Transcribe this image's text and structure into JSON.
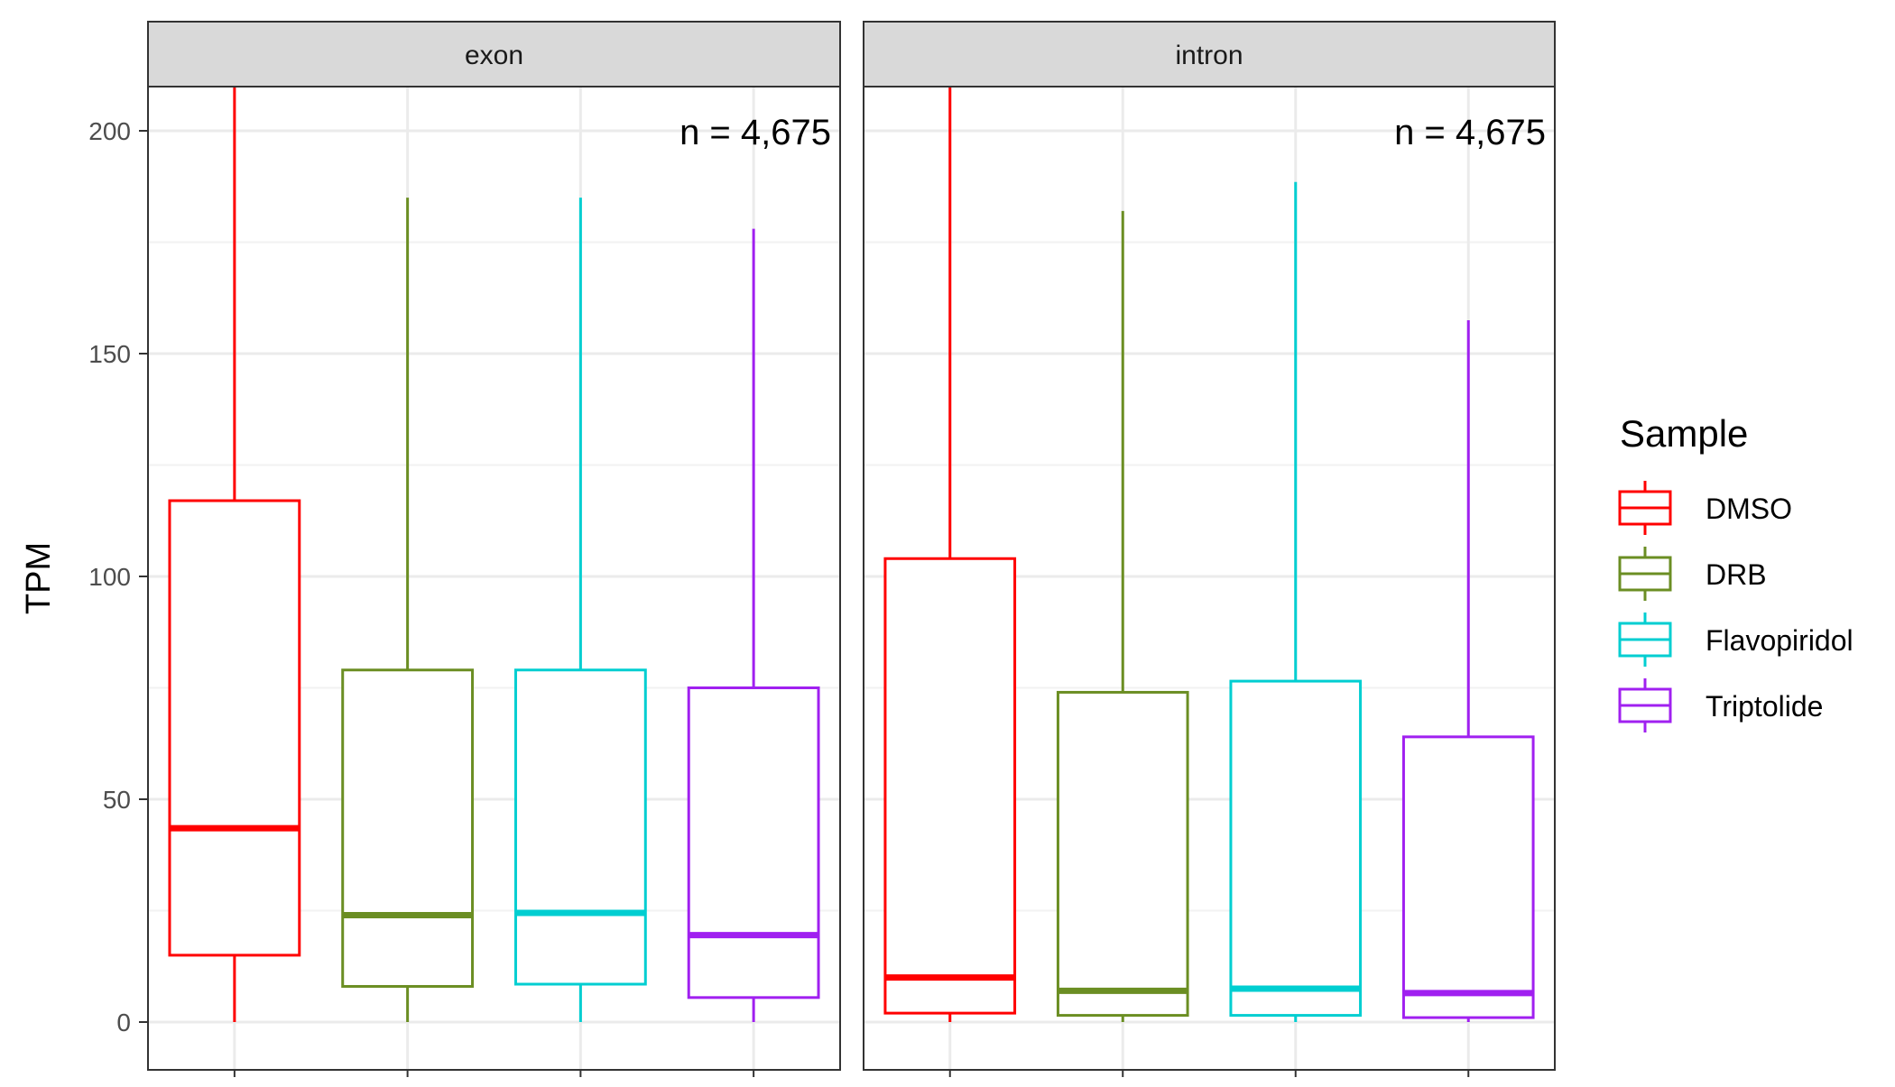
{
  "chart_data": {
    "type": "boxplot",
    "ylabel": "TPM",
    "ylim": [
      0,
      210
    ],
    "yticks": [
      0,
      50,
      100,
      150,
      200
    ],
    "legend": {
      "title": "Sample",
      "placement": "right",
      "items": [
        {
          "label": "DMSO",
          "color": "#ff0000"
        },
        {
          "label": "DRB",
          "color": "#6b8e23"
        },
        {
          "label": "Flavopiridol",
          "color": "#00ced1"
        },
        {
          "label": "Triptolide",
          "color": "#a020f0"
        }
      ]
    },
    "panels": [
      {
        "title": "exon",
        "annotation": "n = 4,675",
        "boxes": [
          {
            "sample": "DMSO",
            "low": 0,
            "q1": 15,
            "median": 43.5,
            "q3": 117,
            "high": 210
          },
          {
            "sample": "DRB",
            "low": 0,
            "q1": 8,
            "median": 24,
            "q3": 79,
            "high": 185
          },
          {
            "sample": "Flavopiridol",
            "low": 0,
            "q1": 8.5,
            "median": 24.5,
            "q3": 79,
            "high": 185
          },
          {
            "sample": "Triptolide",
            "low": 0,
            "q1": 5.5,
            "median": 19.5,
            "q3": 75,
            "high": 178
          }
        ]
      },
      {
        "title": "intron",
        "annotation": "n = 4,675",
        "boxes": [
          {
            "sample": "DMSO",
            "low": 0,
            "q1": 2,
            "median": 10,
            "q3": 104,
            "high": 210
          },
          {
            "sample": "DRB",
            "low": 0,
            "q1": 1.5,
            "median": 7,
            "q3": 74,
            "high": 182
          },
          {
            "sample": "Flavopiridol",
            "low": 0,
            "q1": 1.5,
            "median": 7.5,
            "q3": 76.5,
            "high": 188.5
          },
          {
            "sample": "Triptolide",
            "low": 0,
            "q1": 1,
            "median": 6.5,
            "q3": 64,
            "high": 157.5
          }
        ]
      }
    ]
  }
}
